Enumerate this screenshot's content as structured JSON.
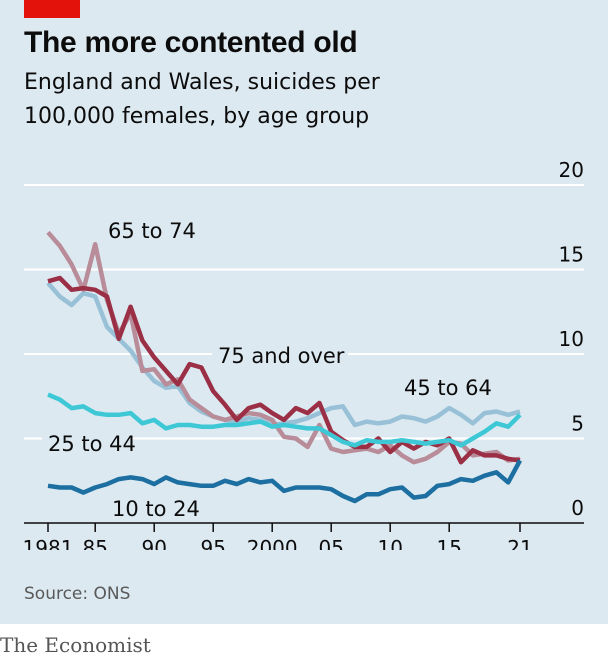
{
  "title": "The more contented old",
  "subtitle_line1": "England and Wales, suicides per",
  "subtitle_line2": "100,000 females, by age group",
  "source": "Source: ONS",
  "footer": "The Economist",
  "colors": {
    "background": "#dce9f1",
    "brand_red": "#e3120b",
    "s_10_24": "#1c6fa0",
    "s_25_44": "#3ec8d6",
    "s_45_64": "#98c0d6",
    "s_65_74": "#b88c98",
    "s_75_over": "#9b2f46"
  },
  "chart_data": {
    "type": "line",
    "x_ticks": [
      "1981",
      "85",
      "90",
      "95",
      "2000",
      "05",
      "10",
      "15",
      "21"
    ],
    "x_tick_values": [
      1981,
      1985,
      1990,
      1995,
      2000,
      2005,
      2010,
      2015,
      2021
    ],
    "y_ticks": [
      "0",
      "5",
      "10",
      "15",
      "20"
    ],
    "y_tick_values": [
      0,
      5,
      10,
      15,
      20
    ],
    "xlim": [
      1981,
      2021
    ],
    "ylim": [
      0,
      20
    ],
    "grid": "horizontal",
    "series": [
      {
        "name": "45 to 64",
        "color_key": "s_45_64",
        "x": [
          1981,
          1982,
          1983,
          1984,
          1985,
          1986,
          1987,
          1988,
          1989,
          1990,
          1991,
          1992,
          1993,
          1994,
          1995,
          1996,
          1997,
          1998,
          1999,
          2000,
          2001,
          2002,
          2003,
          2004,
          2005,
          2006,
          2007,
          2008,
          2009,
          2010,
          2011,
          2012,
          2013,
          2014,
          2015,
          2016,
          2017,
          2018,
          2019,
          2020,
          2021
        ],
        "y": [
          14.2,
          13.4,
          12.9,
          13.6,
          13.4,
          11.6,
          10.9,
          10.2,
          9.2,
          8.4,
          8.0,
          8.1,
          7.1,
          6.6,
          6.3,
          6.1,
          6.0,
          6.2,
          6.1,
          5.8,
          5.9,
          6.0,
          6.2,
          6.5,
          6.8,
          6.9,
          5.8,
          6.0,
          5.9,
          6.0,
          6.3,
          6.2,
          6.0,
          6.3,
          6.8,
          6.4,
          5.9,
          6.5,
          6.6,
          6.4,
          6.6
        ]
      },
      {
        "name": "65 to 74",
        "color_key": "s_65_74",
        "x": [
          1981,
          1982,
          1983,
          1984,
          1985,
          1986,
          1987,
          1988,
          1989,
          1990,
          1991,
          1992,
          1993,
          1994,
          1995,
          1996,
          1997,
          1998,
          1999,
          2000,
          2001,
          2002,
          2003,
          2004,
          2005,
          2006,
          2007,
          2008,
          2009,
          2010,
          2011,
          2012,
          2013,
          2014,
          2015,
          2016,
          2017,
          2018,
          2019,
          2020,
          2021
        ],
        "y": [
          17.2,
          16.4,
          15.3,
          13.8,
          16.5,
          13.2,
          11.2,
          12.4,
          9.0,
          9.1,
          8.2,
          8.5,
          7.3,
          6.8,
          6.3,
          6.1,
          6.3,
          6.5,
          6.4,
          6.1,
          5.1,
          5.0,
          4.5,
          5.8,
          4.4,
          4.2,
          4.3,
          4.4,
          4.2,
          4.6,
          4.0,
          3.6,
          3.8,
          4.2,
          4.8,
          4.7,
          4.0,
          4.1,
          4.2,
          3.7,
          3.8
        ]
      },
      {
        "name": "75 and over",
        "color_key": "s_75_over",
        "x": [
          1981,
          1982,
          1983,
          1984,
          1985,
          1986,
          1987,
          1988,
          1989,
          1990,
          1991,
          1992,
          1993,
          1994,
          1995,
          1996,
          1997,
          1998,
          1999,
          2000,
          2001,
          2002,
          2003,
          2004,
          2005,
          2006,
          2007,
          2008,
          2009,
          2010,
          2011,
          2012,
          2013,
          2014,
          2015,
          2016,
          2017,
          2018,
          2019,
          2020,
          2021
        ],
        "y": [
          14.3,
          14.5,
          13.8,
          13.9,
          13.8,
          13.4,
          10.9,
          12.8,
          10.8,
          9.8,
          9.0,
          8.2,
          9.4,
          9.2,
          7.8,
          7.0,
          6.1,
          6.8,
          7.0,
          6.5,
          6.1,
          6.8,
          6.5,
          7.1,
          5.4,
          4.9,
          4.5,
          4.5,
          5.0,
          4.2,
          4.8,
          4.4,
          4.8,
          4.6,
          5.0,
          3.6,
          4.3,
          4.0,
          4.0,
          3.8,
          3.7
        ]
      },
      {
        "name": "25 to 44",
        "color_key": "s_25_44",
        "x": [
          1981,
          1982,
          1983,
          1984,
          1985,
          1986,
          1987,
          1988,
          1989,
          1990,
          1991,
          1992,
          1993,
          1994,
          1995,
          1996,
          1997,
          1998,
          1999,
          2000,
          2001,
          2002,
          2003,
          2004,
          2005,
          2006,
          2007,
          2008,
          2009,
          2010,
          2011,
          2012,
          2013,
          2014,
          2015,
          2016,
          2017,
          2018,
          2019,
          2020,
          2021
        ],
        "y": [
          7.6,
          7.3,
          6.8,
          6.9,
          6.5,
          6.4,
          6.4,
          6.5,
          5.9,
          6.1,
          5.6,
          5.8,
          5.8,
          5.7,
          5.7,
          5.8,
          5.8,
          5.9,
          6.0,
          5.7,
          5.8,
          5.7,
          5.6,
          5.6,
          5.2,
          4.8,
          4.6,
          4.9,
          4.8,
          4.8,
          4.9,
          4.8,
          4.7,
          4.8,
          4.9,
          4.6,
          5.0,
          5.4,
          5.9,
          5.7,
          6.4
        ]
      },
      {
        "name": "10 to 24",
        "color_key": "s_10_24",
        "x": [
          1981,
          1982,
          1983,
          1984,
          1985,
          1986,
          1987,
          1988,
          1989,
          1990,
          1991,
          1992,
          1993,
          1994,
          1995,
          1996,
          1997,
          1998,
          1999,
          2000,
          2001,
          2002,
          2003,
          2004,
          2005,
          2006,
          2007,
          2008,
          2009,
          2010,
          2011,
          2012,
          2013,
          2014,
          2015,
          2016,
          2017,
          2018,
          2019,
          2020,
          2021
        ],
        "y": [
          2.2,
          2.1,
          2.1,
          1.8,
          2.1,
          2.3,
          2.6,
          2.7,
          2.6,
          2.3,
          2.7,
          2.4,
          2.3,
          2.2,
          2.2,
          2.5,
          2.3,
          2.6,
          2.4,
          2.5,
          1.9,
          2.1,
          2.1,
          2.1,
          2.0,
          1.6,
          1.3,
          1.7,
          1.7,
          2.0,
          2.1,
          1.5,
          1.6,
          2.2,
          2.3,
          2.6,
          2.5,
          2.8,
          3.0,
          2.4,
          3.7
        ]
      }
    ]
  }
}
